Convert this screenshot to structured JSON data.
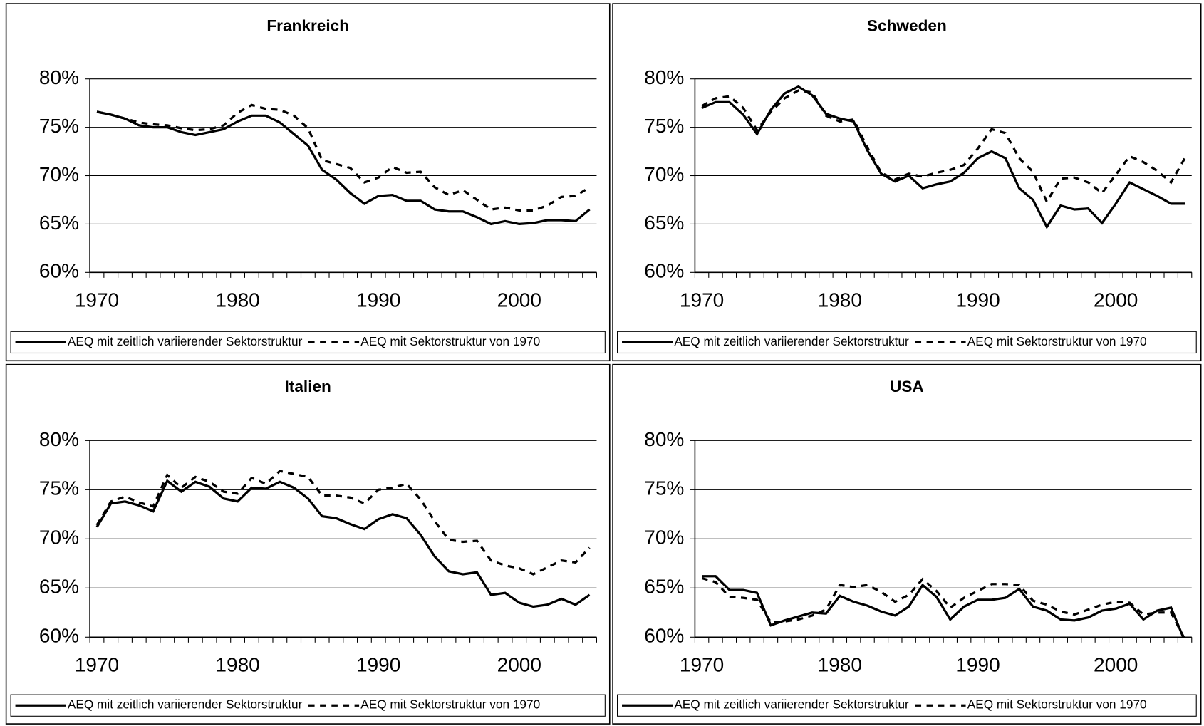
{
  "chart_data": [
    {
      "type": "line",
      "title": "Frankreich",
      "x": [
        1970,
        1971,
        1972,
        1973,
        1974,
        1975,
        1976,
        1977,
        1978,
        1979,
        1980,
        1981,
        1982,
        1983,
        1984,
        1985,
        1986,
        1987,
        1988,
        1989,
        1990,
        1991,
        1992,
        1993,
        1994,
        1995,
        1996,
        1997,
        1998,
        1999,
        2000,
        2001,
        2002,
        2003,
        2004,
        2005
      ],
      "series": [
        {
          "name": "AEQ mit zeitlich variierender Sektorstruktur",
          "color": "#000000",
          "line_style": "solid",
          "values": [
            76.6,
            76.3,
            75.9,
            75.2,
            75.0,
            75.0,
            74.5,
            74.2,
            74.5,
            74.8,
            75.6,
            76.2,
            76.2,
            75.5,
            74.3,
            73.1,
            70.6,
            69.6,
            68.2,
            67.1,
            67.9,
            68.0,
            67.4,
            67.4,
            66.5,
            66.3,
            66.3,
            65.7,
            65.0,
            65.3,
            65.0,
            65.1,
            65.4,
            65.4,
            65.3,
            66.5
          ]
        },
        {
          "name": "AEQ mit Sektorstruktur von 1970",
          "color": "#000000",
          "line_style": "dashed",
          "values": [
            76.6,
            76.3,
            75.9,
            75.5,
            75.3,
            75.2,
            74.9,
            74.7,
            74.8,
            75.2,
            76.5,
            77.3,
            76.9,
            76.8,
            76.2,
            74.9,
            71.6,
            71.2,
            70.8,
            69.3,
            69.8,
            70.9,
            70.3,
            70.4,
            68.8,
            68.0,
            68.5,
            67.5,
            66.5,
            66.7,
            66.4,
            66.4,
            66.9,
            67.8,
            67.9,
            68.8
          ]
        }
      ],
      "xlim": [
        1969.5,
        2005.5
      ],
      "xticks": [
        1970,
        1980,
        1990,
        2000
      ],
      "ylim": [
        60,
        80
      ],
      "yticks": [
        {
          "value": 60,
          "label": "60%"
        },
        {
          "value": 65,
          "label": "65%"
        },
        {
          "value": 70,
          "label": "70%"
        },
        {
          "value": 75,
          "label": "75%"
        },
        {
          "value": 80,
          "label": "80%"
        }
      ],
      "grid": true,
      "legend": "bottom"
    },
    {
      "type": "line",
      "title": "Schweden",
      "x": [
        1970,
        1971,
        1972,
        1973,
        1974,
        1975,
        1976,
        1977,
        1978,
        1979,
        1980,
        1981,
        1982,
        1983,
        1984,
        1985,
        1986,
        1987,
        1988,
        1989,
        1990,
        1991,
        1992,
        1993,
        1994,
        1995,
        1996,
        1997,
        1998,
        1999,
        2000,
        2001,
        2002,
        2003,
        2004,
        2005
      ],
      "series": [
        {
          "name": "AEQ mit zeitlich variierender Sektorstruktur",
          "color": "#000000",
          "line_style": "solid",
          "values": [
            77.0,
            77.6,
            77.6,
            76.3,
            74.3,
            76.8,
            78.5,
            79.2,
            78.3,
            76.4,
            75.9,
            75.6,
            72.6,
            70.2,
            69.4,
            70.0,
            68.7,
            69.1,
            69.4,
            70.3,
            71.8,
            72.5,
            71.8,
            68.7,
            67.5,
            64.7,
            66.9,
            66.5,
            66.6,
            65.1,
            67.1,
            69.3,
            68.6,
            67.9,
            67.1,
            67.1
          ]
        },
        {
          "name": "AEQ mit Sektorstruktur von 1970",
          "color": "#000000",
          "line_style": "dashed",
          "values": [
            77.2,
            78.0,
            78.2,
            77.0,
            74.7,
            76.6,
            78.0,
            78.8,
            78.6,
            76.2,
            75.6,
            75.8,
            72.9,
            70.3,
            69.6,
            70.2,
            69.9,
            70.3,
            70.6,
            71.1,
            72.8,
            74.8,
            74.4,
            71.8,
            70.4,
            67.3,
            69.7,
            69.8,
            69.3,
            68.2,
            70.1,
            72.0,
            71.4,
            70.5,
            69.3,
            71.8
          ]
        }
      ],
      "xlim": [
        1969.5,
        2005.5
      ],
      "xticks": [
        1970,
        1980,
        1990,
        2000
      ],
      "ylim": [
        60,
        80
      ],
      "yticks": [
        {
          "value": 60,
          "label": "60%"
        },
        {
          "value": 65,
          "label": "65%"
        },
        {
          "value": 70,
          "label": "70%"
        },
        {
          "value": 75,
          "label": "75%"
        },
        {
          "value": 80,
          "label": "80%"
        }
      ],
      "grid": true,
      "legend": "bottom"
    },
    {
      "type": "line",
      "title": "Italien",
      "x": [
        1970,
        1971,
        1972,
        1973,
        1974,
        1975,
        1976,
        1977,
        1978,
        1979,
        1980,
        1981,
        1982,
        1983,
        1984,
        1985,
        1986,
        1987,
        1988,
        1989,
        1990,
        1991,
        1992,
        1993,
        1994,
        1995,
        1996,
        1997,
        1998,
        1999,
        2000,
        2001,
        2002,
        2003,
        2004,
        2005
      ],
      "series": [
        {
          "name": "AEQ mit zeitlich variierender Sektorstruktur",
          "color": "#000000",
          "line_style": "solid",
          "values": [
            71.2,
            73.6,
            73.8,
            73.4,
            72.8,
            75.9,
            74.8,
            75.8,
            75.3,
            74.1,
            73.8,
            75.2,
            75.1,
            75.8,
            75.2,
            74.1,
            72.3,
            72.1,
            71.5,
            71.0,
            72.0,
            72.5,
            72.1,
            70.4,
            68.2,
            66.7,
            66.4,
            66.6,
            64.3,
            64.5,
            63.5,
            63.1,
            63.3,
            63.9,
            63.3,
            64.3
          ]
        },
        {
          "name": "AEQ mit Sektorstruktur von 1970",
          "color": "#000000",
          "line_style": "dashed",
          "values": [
            71.4,
            73.8,
            74.3,
            73.7,
            73.3,
            76.5,
            75.2,
            76.3,
            75.8,
            74.8,
            74.6,
            76.2,
            75.6,
            76.9,
            76.6,
            76.3,
            74.4,
            74.4,
            74.2,
            73.6,
            75.0,
            75.2,
            75.6,
            74.0,
            71.8,
            69.9,
            69.7,
            69.8,
            67.8,
            67.3,
            67.0,
            66.4,
            67.1,
            67.8,
            67.6,
            69.1
          ]
        }
      ],
      "xlim": [
        1969.5,
        2005.5
      ],
      "xticks": [
        1970,
        1980,
        1990,
        2000
      ],
      "ylim": [
        60,
        80
      ],
      "yticks": [
        {
          "value": 60,
          "label": "60%"
        },
        {
          "value": 65,
          "label": "65%"
        },
        {
          "value": 70,
          "label": "70%"
        },
        {
          "value": 75,
          "label": "75%"
        },
        {
          "value": 80,
          "label": "80%"
        }
      ],
      "grid": true,
      "legend": "bottom"
    },
    {
      "type": "line",
      "title": "USA",
      "x": [
        1970,
        1971,
        1972,
        1973,
        1974,
        1975,
        1976,
        1977,
        1978,
        1979,
        1980,
        1981,
        1982,
        1983,
        1984,
        1985,
        1986,
        1987,
        1988,
        1989,
        1990,
        1991,
        1992,
        1993,
        1994,
        1995,
        1996,
        1997,
        1998,
        1999,
        2000,
        2001,
        2002,
        2003,
        2004,
        2005
      ],
      "series": [
        {
          "name": "AEQ mit zeitlich variierender Sektorstruktur",
          "color": "#000000",
          "line_style": "solid",
          "values": [
            66.2,
            66.2,
            64.8,
            64.8,
            64.5,
            61.2,
            61.7,
            62.1,
            62.5,
            62.4,
            64.2,
            63.6,
            63.2,
            62.6,
            62.2,
            63.1,
            65.3,
            64.1,
            61.8,
            63.1,
            63.8,
            63.8,
            64.0,
            64.9,
            63.1,
            62.7,
            61.8,
            61.7,
            62.0,
            62.7,
            62.9,
            63.4,
            61.8,
            62.7,
            63.0,
            59.6
          ]
        },
        {
          "name": "AEQ mit Sektorstruktur von 1970",
          "color": "#000000",
          "line_style": "dashed",
          "values": [
            66.0,
            65.6,
            64.1,
            64.0,
            63.8,
            61.5,
            61.6,
            61.8,
            62.2,
            62.8,
            65.3,
            65.1,
            65.3,
            64.6,
            63.6,
            64.3,
            65.9,
            64.7,
            63.0,
            64.0,
            64.7,
            65.4,
            65.4,
            65.3,
            63.7,
            63.3,
            62.6,
            62.3,
            62.8,
            63.3,
            63.6,
            63.5,
            62.3,
            62.5,
            62.5,
            59.8
          ]
        }
      ],
      "xlim": [
        1969.5,
        2005.5
      ],
      "xticks": [
        1970,
        1980,
        1990,
        2000
      ],
      "ylim": [
        60,
        80
      ],
      "yticks": [
        {
          "value": 60,
          "label": "60%"
        },
        {
          "value": 65,
          "label": "65%"
        },
        {
          "value": 70,
          "label": "70%"
        },
        {
          "value": 75,
          "label": "75%"
        },
        {
          "value": 80,
          "label": "80%"
        }
      ],
      "grid": true,
      "legend": "bottom"
    }
  ]
}
